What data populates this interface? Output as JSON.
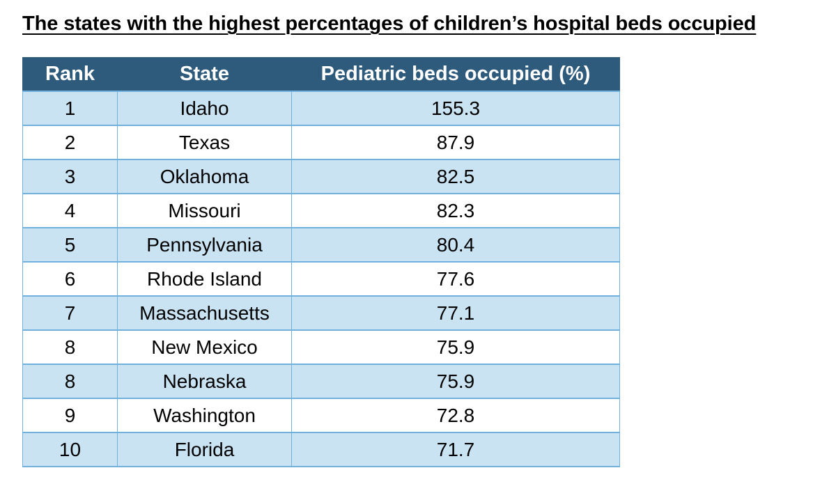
{
  "title": "The states with the highest percentages of children’s hospital beds occupied ",
  "chart_data": {
    "type": "table",
    "title": "The states with the highest percentages of children’s hospital beds occupied",
    "columns": [
      "Rank",
      "State",
      "Pediatric beds occupied (%)"
    ],
    "rows": [
      [
        "1",
        "Idaho",
        "155.3"
      ],
      [
        "2",
        "Texas",
        "87.9"
      ],
      [
        "3",
        "Oklahoma",
        "82.5"
      ],
      [
        "4",
        "Missouri",
        "82.3"
      ],
      [
        "5",
        "Pennsylvania",
        "80.4"
      ],
      [
        "6",
        "Rhode Island",
        "77.6"
      ],
      [
        "7",
        "Massachusetts",
        "77.1"
      ],
      [
        "8",
        "New Mexico",
        "75.9"
      ],
      [
        "8",
        "Nebraska",
        "75.9"
      ],
      [
        "9",
        "Washington",
        "72.8"
      ],
      [
        "10",
        "Florida",
        "71.7"
      ]
    ]
  },
  "colors": {
    "header_bg": "#2e5a7c",
    "band_bg": "#c9e3f3",
    "border": "#6fb0dc"
  }
}
